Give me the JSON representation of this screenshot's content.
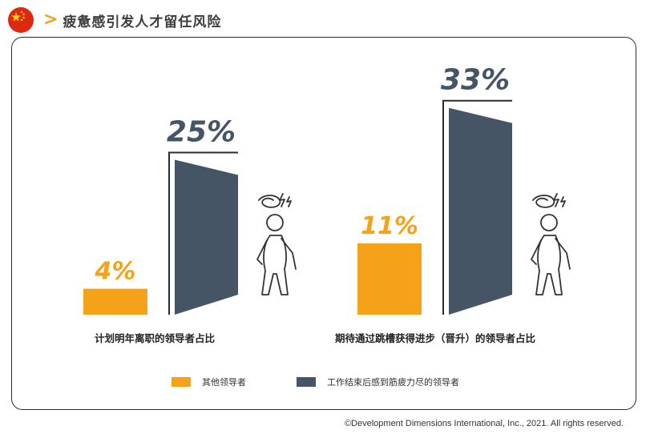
{
  "header": {
    "title": "疲惫感引发人才留任风险"
  },
  "colors": {
    "orange": "#f5a11a",
    "slate": "#455565",
    "frame": "#2b2b2b"
  },
  "chart_data": {
    "type": "bar",
    "series": [
      {
        "name": "其他领导者",
        "color": "#f5a11a"
      },
      {
        "name": "工作结束后感到筋疲力尽的领导者",
        "color": "#455565"
      }
    ],
    "groups": [
      {
        "label": "计划明年离职的领导者占比",
        "values": [
          4,
          25
        ],
        "value_labels": [
          "4%",
          "25%"
        ]
      },
      {
        "label": "期待通过跳槽获得进步（晋升）的领导者占比",
        "values": [
          11,
          33
        ],
        "value_labels": [
          "11%",
          "33%"
        ]
      }
    ],
    "unit": "%"
  },
  "footer": {
    "copyright": "©Development Dimensions International, Inc., 2021. All rights reserved."
  }
}
